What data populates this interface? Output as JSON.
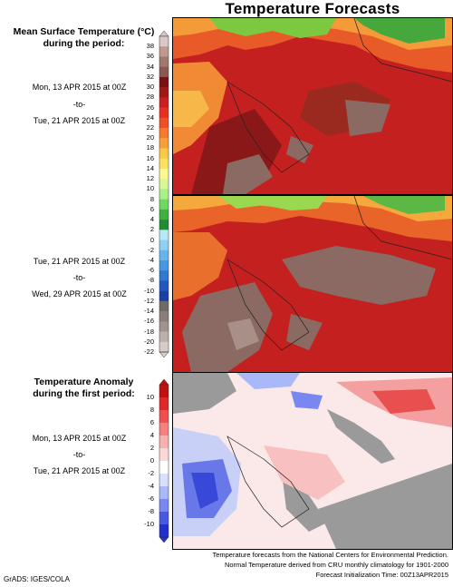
{
  "title": "Temperature Forecasts",
  "section_temp": {
    "line1": "Mean Surface Temperature (°C)",
    "line2": "during the period:"
  },
  "period1": {
    "start": "Mon, 13 APR 2015 at 00Z",
    "sep": "-to-",
    "end": "Tue, 21 APR 2015 at 00Z"
  },
  "period2": {
    "start": "Tue, 21 APR 2015 at 00Z",
    "sep": "-to-",
    "end": "Wed, 29 APR 2015 at 00Z"
  },
  "section_anom": {
    "line1": "Temperature Anomaly",
    "line2": "during the first period:"
  },
  "period3": {
    "start": "Mon, 13 APR 2015 at 00Z",
    "sep": "-to-",
    "end": "Tue, 21 APR 2015 at 00Z"
  },
  "temp_colorbar": {
    "labels": [
      "38",
      "36",
      "34",
      "32",
      "30",
      "28",
      "26",
      "24",
      "22",
      "20",
      "18",
      "16",
      "14",
      "12",
      "10",
      "8",
      "6",
      "4",
      "2",
      "0",
      "-2",
      "-4",
      "-6",
      "-8",
      "-10",
      "-12",
      "-14",
      "-16",
      "-18",
      "-20",
      "-22"
    ],
    "colors": [
      "#d8c8c8",
      "#c09890",
      "#a07870",
      "#8a5a50",
      "#7a1010",
      "#a01818",
      "#c82020",
      "#e83020",
      "#f05028",
      "#f47a30",
      "#f8a038",
      "#fcc848",
      "#fce060",
      "#fcf890",
      "#d8f898",
      "#a8f088",
      "#70d860",
      "#40b040",
      "#208c30",
      "#b8e8f8",
      "#90d0f4",
      "#68b4ec",
      "#4898e0",
      "#3078d0",
      "#2058c0",
      "#1a40a8",
      "#6e6a66",
      "#8a7c78",
      "#a0928e",
      "#bcb0ac",
      "#d6ccc8"
    ]
  },
  "anom_colorbar": {
    "labels": [
      "10",
      "8",
      "6",
      "4",
      "2",
      "0",
      "-2",
      "-4",
      "-6",
      "-8",
      "-10"
    ],
    "colors": [
      "#c01010",
      "#e02828",
      "#f05050",
      "#f48080",
      "#f8b0b0",
      "#fcd8d8",
      "#ffffff",
      "#d8e0ff",
      "#a8b8f8",
      "#7888f0",
      "#4858e0",
      "#2030c8"
    ]
  },
  "footer": {
    "line1": "Temperature forecasts from the National Centers for Environmental Prediction.",
    "line2": "Normal Temperature derived from CRU monthly climatology for 1901-2000",
    "line3": "Forecast Initialization Time: 00Z13APR2015"
  },
  "credit": "GrADS: IGES/COLA"
}
